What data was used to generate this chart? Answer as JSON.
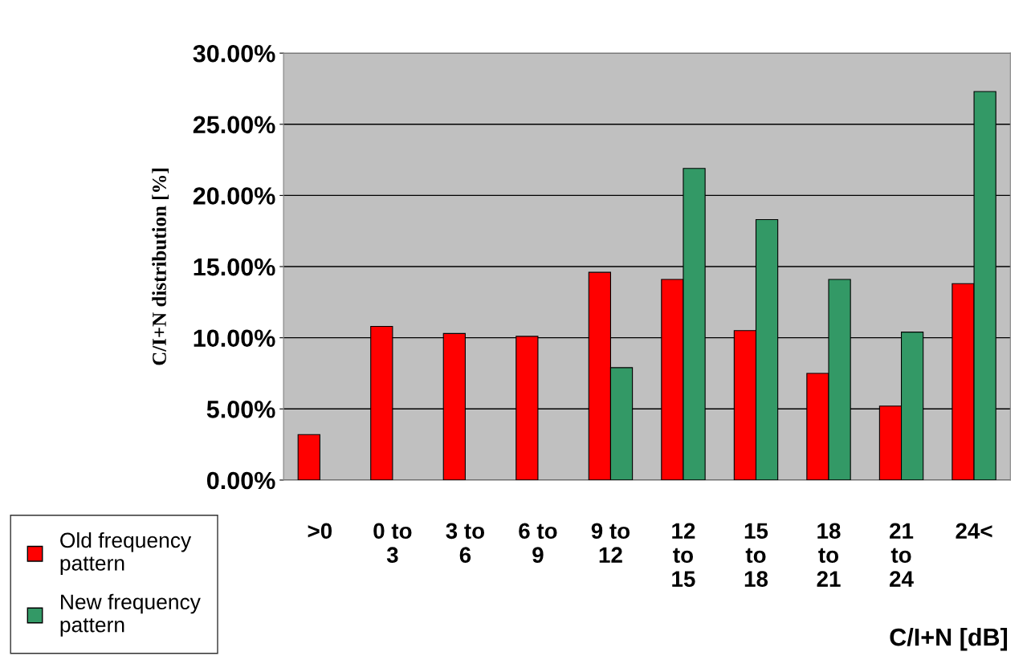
{
  "chart_data": {
    "type": "bar",
    "xlabel": "C/I+N [dB]",
    "ylabel": "C/I+N distribution [%]",
    "categories": [
      ">0",
      "0 to 3",
      "3 to 6",
      "6 to 9",
      "9 to 12",
      "12 to 15",
      "15 to 18",
      "18 to 21",
      "21 to 24",
      "24<"
    ],
    "series": [
      {
        "name": "Old frequency pattern",
        "color": "#ff0000",
        "values": [
          3.2,
          10.8,
          10.3,
          10.1,
          14.6,
          14.1,
          10.5,
          7.5,
          5.2,
          13.8
        ]
      },
      {
        "name": "New frequency pattern",
        "color": "#339966",
        "values": [
          null,
          null,
          null,
          null,
          7.9,
          21.9,
          18.3,
          14.1,
          10.4,
          27.3
        ]
      }
    ],
    "ylim": [
      0,
      30
    ],
    "yticks": [
      {
        "value": 0,
        "label": "0.00%"
      },
      {
        "value": 5,
        "label": "5.00%"
      },
      {
        "value": 10,
        "label": "10.00%"
      },
      {
        "value": 15,
        "label": "15.00%"
      },
      {
        "value": 20,
        "label": "20.00%"
      },
      {
        "value": 25,
        "label": "25.00%"
      },
      {
        "value": 30,
        "label": "30.00%"
      }
    ],
    "grid": "y",
    "legend": "bottom left"
  }
}
